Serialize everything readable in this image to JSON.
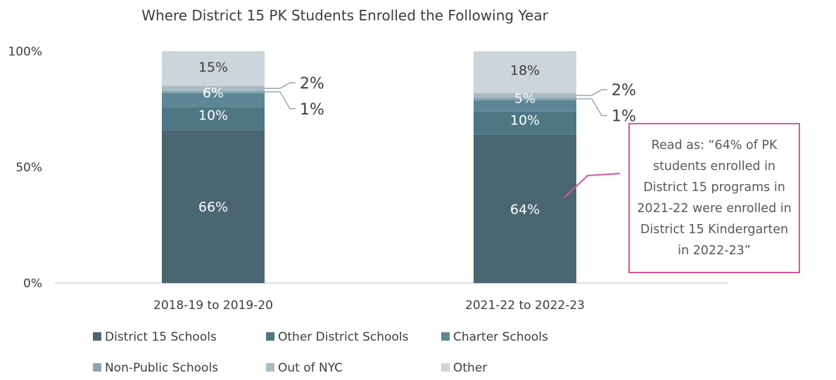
{
  "chart_data": {
    "type": "bar",
    "stacked": true,
    "title": "Where District 15 PK Students Enrolled the Following Year",
    "categories": [
      "2018-19 to 2019-20",
      "2021-22 to 2022-23"
    ],
    "ylim": [
      0,
      100
    ],
    "yticks": [
      "0%",
      "50%",
      "100%"
    ],
    "series": [
      {
        "name": "District 15 Schools",
        "values": [
          66,
          64
        ],
        "labels": [
          "66%",
          "64%"
        ],
        "color": "#4a6670"
      },
      {
        "name": "Other District Schools",
        "values": [
          10,
          10
        ],
        "labels": [
          "10%",
          "10%"
        ],
        "color": "#4e7685"
      },
      {
        "name": "Charter Schools",
        "values": [
          6,
          5
        ],
        "labels": [
          "6%",
          "5%"
        ],
        "color": "#5d8797"
      },
      {
        "name": "Non-Public Schools",
        "values": [
          1,
          1
        ],
        "labels": [
          "1%",
          "1%"
        ],
        "color": "#8ba6b3"
      },
      {
        "name": "Out of NYC",
        "values": [
          2,
          2
        ],
        "labels": [
          "2%",
          "2%"
        ],
        "color": "#a9bcc4"
      },
      {
        "name": "Other",
        "values": [
          15,
          18
        ],
        "labels": [
          "15%",
          "18%"
        ],
        "color": "#ccd5d9"
      }
    ],
    "legend_position": "bottom",
    "grid": false
  },
  "callout": {
    "text": "Read as: “64% of PK students enrolled in District 15 programs in 2021-22 were enrolled in District 15 Kindergarten in 2022-23”",
    "border_color": "#d9559c"
  }
}
